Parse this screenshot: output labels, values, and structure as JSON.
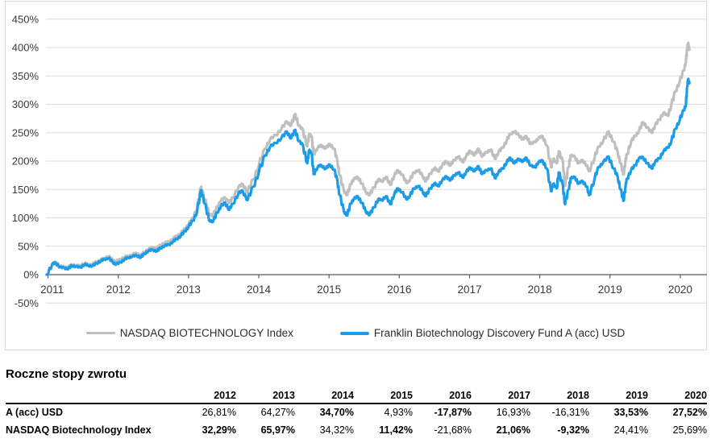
{
  "chart": {
    "frame_border_color": "#D9D9D9",
    "grid_color": "#DBDBDB",
    "axis_color": "#595959",
    "label_color": "#3A3A3A",
    "y_tick_labels": [
      "450%",
      "400%",
      "350%",
      "300%",
      "250%",
      "200%",
      "150%",
      "100%",
      "50%",
      "0%",
      "-50%"
    ],
    "x_tick_labels": [
      "2011",
      "2012",
      "2013",
      "2014",
      "2015",
      "2016",
      "2017",
      "2018",
      "2019",
      "2020"
    ],
    "legend": [
      {
        "label": "NASDAQ BIOTECHNOLOGY Index",
        "color": "#BFBFBF",
        "thickness": 3
      },
      {
        "label": "Franklin Biotechnology Discovery Fund A (acc) USD",
        "color": "#1B9CE8",
        "thickness": 4
      }
    ]
  },
  "chart_data": {
    "type": "line",
    "title": "",
    "xlabel": "",
    "ylabel": "",
    "y_unit": "%",
    "x_unit": "year",
    "xlim": [
      2010.97,
      2020.38
    ],
    "ylim": [
      -50,
      450
    ],
    "y_step": 50,
    "grid": "horizontal",
    "legend_position": "bottom-center",
    "series": [
      {
        "name": "Franklin Biotechnology Discovery Fund A (acc) USD",
        "color": "#1B9CE8",
        "col": 1
      },
      {
        "name": "NASDAQ BIOTECHNOLOGY Index",
        "color": "#BFBFBF",
        "col": 2
      }
    ],
    "columns": [
      "year",
      "fund_cumulative_return_pct",
      "index_cumulative_return_pct"
    ],
    "points": [
      [
        2010.98,
        0,
        0
      ],
      [
        2011.06,
        18,
        19
      ],
      [
        2011.11,
        21,
        22
      ],
      [
        2011.17,
        13,
        15
      ],
      [
        2011.23,
        12,
        14
      ],
      [
        2011.29,
        10,
        13
      ],
      [
        2011.34,
        16,
        18
      ],
      [
        2011.4,
        14,
        16
      ],
      [
        2011.46,
        13,
        16
      ],
      [
        2011.52,
        18,
        20
      ],
      [
        2011.57,
        16,
        18
      ],
      [
        2011.63,
        15,
        18
      ],
      [
        2011.69,
        20,
        23
      ],
      [
        2011.75,
        24,
        26
      ],
      [
        2011.8,
        27,
        29
      ],
      [
        2011.86,
        29,
        32
      ],
      [
        2011.92,
        22,
        26
      ],
      [
        2011.97,
        18,
        23
      ],
      [
        2012.03,
        22,
        27
      ],
      [
        2012.09,
        27,
        31
      ],
      [
        2012.14,
        30,
        33
      ],
      [
        2012.2,
        32,
        35
      ],
      [
        2012.26,
        34,
        38
      ],
      [
        2012.32,
        30,
        33
      ],
      [
        2012.37,
        37,
        40
      ],
      [
        2012.43,
        42,
        45
      ],
      [
        2012.49,
        44,
        48
      ],
      [
        2012.55,
        41,
        46
      ],
      [
        2012.6,
        47,
        52
      ],
      [
        2012.66,
        51,
        56
      ],
      [
        2012.72,
        53,
        58
      ],
      [
        2012.78,
        58,
        63
      ],
      [
        2012.83,
        63,
        68
      ],
      [
        2012.89,
        68,
        72
      ],
      [
        2012.95,
        77,
        81
      ],
      [
        2013.0,
        84,
        88
      ],
      [
        2013.06,
        95,
        100
      ],
      [
        2013.12,
        110,
        116
      ],
      [
        2013.18,
        149,
        155
      ],
      [
        2013.23,
        125,
        133
      ],
      [
        2013.29,
        96,
        107
      ],
      [
        2013.35,
        93,
        104
      ],
      [
        2013.41,
        110,
        120
      ],
      [
        2013.46,
        120,
        130
      ],
      [
        2013.52,
        127,
        136
      ],
      [
        2013.58,
        114,
        126
      ],
      [
        2013.63,
        125,
        136
      ],
      [
        2013.71,
        143,
        154
      ],
      [
        2013.77,
        148,
        160
      ],
      [
        2013.84,
        131,
        145
      ],
      [
        2013.92,
        155,
        168
      ],
      [
        2014.0,
        180,
        192
      ],
      [
        2014.09,
        210,
        222
      ],
      [
        2014.16,
        225,
        238
      ],
      [
        2014.24,
        232,
        246
      ],
      [
        2014.32,
        240,
        256
      ],
      [
        2014.4,
        252,
        270
      ],
      [
        2014.46,
        240,
        262
      ],
      [
        2014.52,
        255,
        283
      ],
      [
        2014.57,
        235,
        262
      ],
      [
        2014.63,
        228,
        255
      ],
      [
        2014.69,
        196,
        226
      ],
      [
        2014.72,
        220,
        248
      ],
      [
        2014.75,
        214,
        244
      ],
      [
        2014.78,
        177,
        212
      ],
      [
        2014.84,
        190,
        224
      ],
      [
        2014.89,
        193,
        228
      ],
      [
        2014.95,
        186,
        222
      ],
      [
        2015.01,
        194,
        230
      ],
      [
        2015.07,
        185,
        222
      ],
      [
        2015.12,
        165,
        200
      ],
      [
        2015.15,
        140,
        175
      ],
      [
        2015.21,
        112,
        148
      ],
      [
        2015.26,
        104,
        140
      ],
      [
        2015.31,
        126,
        160
      ],
      [
        2015.35,
        133,
        168
      ],
      [
        2015.41,
        138,
        172
      ],
      [
        2015.47,
        126,
        160
      ],
      [
        2015.52,
        112,
        146
      ],
      [
        2015.58,
        105,
        140
      ],
      [
        2015.64,
        119,
        154
      ],
      [
        2015.7,
        133,
        168
      ],
      [
        2015.75,
        131,
        164
      ],
      [
        2015.81,
        138,
        172
      ],
      [
        2015.87,
        124,
        158
      ],
      [
        2015.93,
        142,
        175
      ],
      [
        2015.98,
        152,
        184
      ],
      [
        2016.04,
        145,
        176
      ],
      [
        2016.1,
        133,
        162
      ],
      [
        2016.15,
        138,
        166
      ],
      [
        2016.21,
        152,
        180
      ],
      [
        2016.27,
        156,
        184
      ],
      [
        2016.33,
        147,
        174
      ],
      [
        2016.38,
        138,
        164
      ],
      [
        2016.44,
        152,
        178
      ],
      [
        2016.5,
        161,
        188
      ],
      [
        2016.55,
        156,
        182
      ],
      [
        2016.61,
        166,
        192
      ],
      [
        2016.67,
        173,
        200
      ],
      [
        2016.73,
        166,
        192
      ],
      [
        2016.78,
        175,
        202
      ],
      [
        2016.84,
        180,
        208
      ],
      [
        2016.9,
        171,
        198
      ],
      [
        2016.95,
        180,
        208
      ],
      [
        2017.01,
        189,
        218
      ],
      [
        2017.07,
        182,
        210
      ],
      [
        2017.13,
        191,
        222
      ],
      [
        2017.18,
        177,
        208
      ],
      [
        2017.24,
        184,
        216
      ],
      [
        2017.3,
        187,
        220
      ],
      [
        2017.36,
        170,
        204
      ],
      [
        2017.41,
        180,
        215
      ],
      [
        2017.47,
        187,
        224
      ],
      [
        2017.53,
        198,
        236
      ],
      [
        2017.58,
        206,
        248
      ],
      [
        2017.64,
        196,
        252
      ],
      [
        2017.7,
        204,
        246
      ],
      [
        2017.76,
        199,
        238
      ],
      [
        2017.81,
        206,
        244
      ],
      [
        2017.87,
        192,
        230
      ],
      [
        2017.93,
        189,
        234
      ],
      [
        2017.98,
        198,
        240
      ],
      [
        2018.04,
        201,
        244
      ],
      [
        2018.1,
        187,
        228
      ],
      [
        2018.16,
        147,
        189
      ],
      [
        2018.19,
        160,
        204
      ],
      [
        2018.24,
        152,
        196
      ],
      [
        2018.27,
        180,
        217
      ],
      [
        2018.33,
        156,
        198
      ],
      [
        2018.36,
        124,
        156
      ],
      [
        2018.41,
        150,
        190
      ],
      [
        2018.44,
        170,
        210
      ],
      [
        2018.5,
        172,
        208
      ],
      [
        2018.55,
        160,
        196
      ],
      [
        2018.61,
        165,
        202
      ],
      [
        2018.67,
        155,
        192
      ],
      [
        2018.7,
        140,
        182
      ],
      [
        2018.78,
        169,
        206
      ],
      [
        2018.84,
        190,
        226
      ],
      [
        2018.9,
        197,
        234
      ],
      [
        2018.98,
        208,
        252
      ],
      [
        2019.05,
        187,
        234
      ],
      [
        2019.11,
        172,
        215
      ],
      [
        2019.15,
        150,
        196
      ],
      [
        2019.19,
        130,
        176
      ],
      [
        2019.22,
        155,
        200
      ],
      [
        2019.24,
        169,
        212
      ],
      [
        2019.3,
        184,
        234
      ],
      [
        2019.36,
        193,
        245
      ],
      [
        2019.41,
        205,
        252
      ],
      [
        2019.47,
        207,
        269
      ],
      [
        2019.53,
        196,
        259
      ],
      [
        2019.59,
        187,
        250
      ],
      [
        2019.64,
        198,
        262
      ],
      [
        2019.7,
        205,
        273
      ],
      [
        2019.76,
        217,
        285
      ],
      [
        2019.82,
        224,
        280
      ],
      [
        2019.87,
        233,
        297
      ],
      [
        2019.93,
        257,
        323
      ],
      [
        2019.99,
        271,
        339
      ],
      [
        2020.05,
        290,
        360
      ],
      [
        2020.08,
        299,
        375
      ],
      [
        2020.1,
        332,
        400
      ],
      [
        2020.11,
        344,
        408
      ],
      [
        2020.13,
        337,
        396
      ]
    ]
  },
  "table": {
    "title": "Roczne stopy zwrotu",
    "years": [
      "2012",
      "2013",
      "2014",
      "2015",
      "2016",
      "2017",
      "2018",
      "2019",
      "2020"
    ],
    "rows": [
      {
        "label": "A (acc) USD",
        "values": [
          "26,81%",
          "64,27%",
          "34,70%",
          "4,93%",
          "-17,87%",
          "16,93%",
          "-16,31%",
          "33,53%",
          "27,52%"
        ],
        "bold": [
          false,
          false,
          true,
          false,
          true,
          false,
          false,
          true,
          true
        ]
      },
      {
        "label": "NASDAQ Biotechnology Index",
        "values": [
          "32,29%",
          "65,97%",
          "34,32%",
          "11,42%",
          "-21,68%",
          "21,06%",
          "-9,32%",
          "24,41%",
          "25,69%"
        ],
        "bold": [
          true,
          true,
          false,
          true,
          false,
          true,
          true,
          false,
          false
        ]
      }
    ]
  }
}
